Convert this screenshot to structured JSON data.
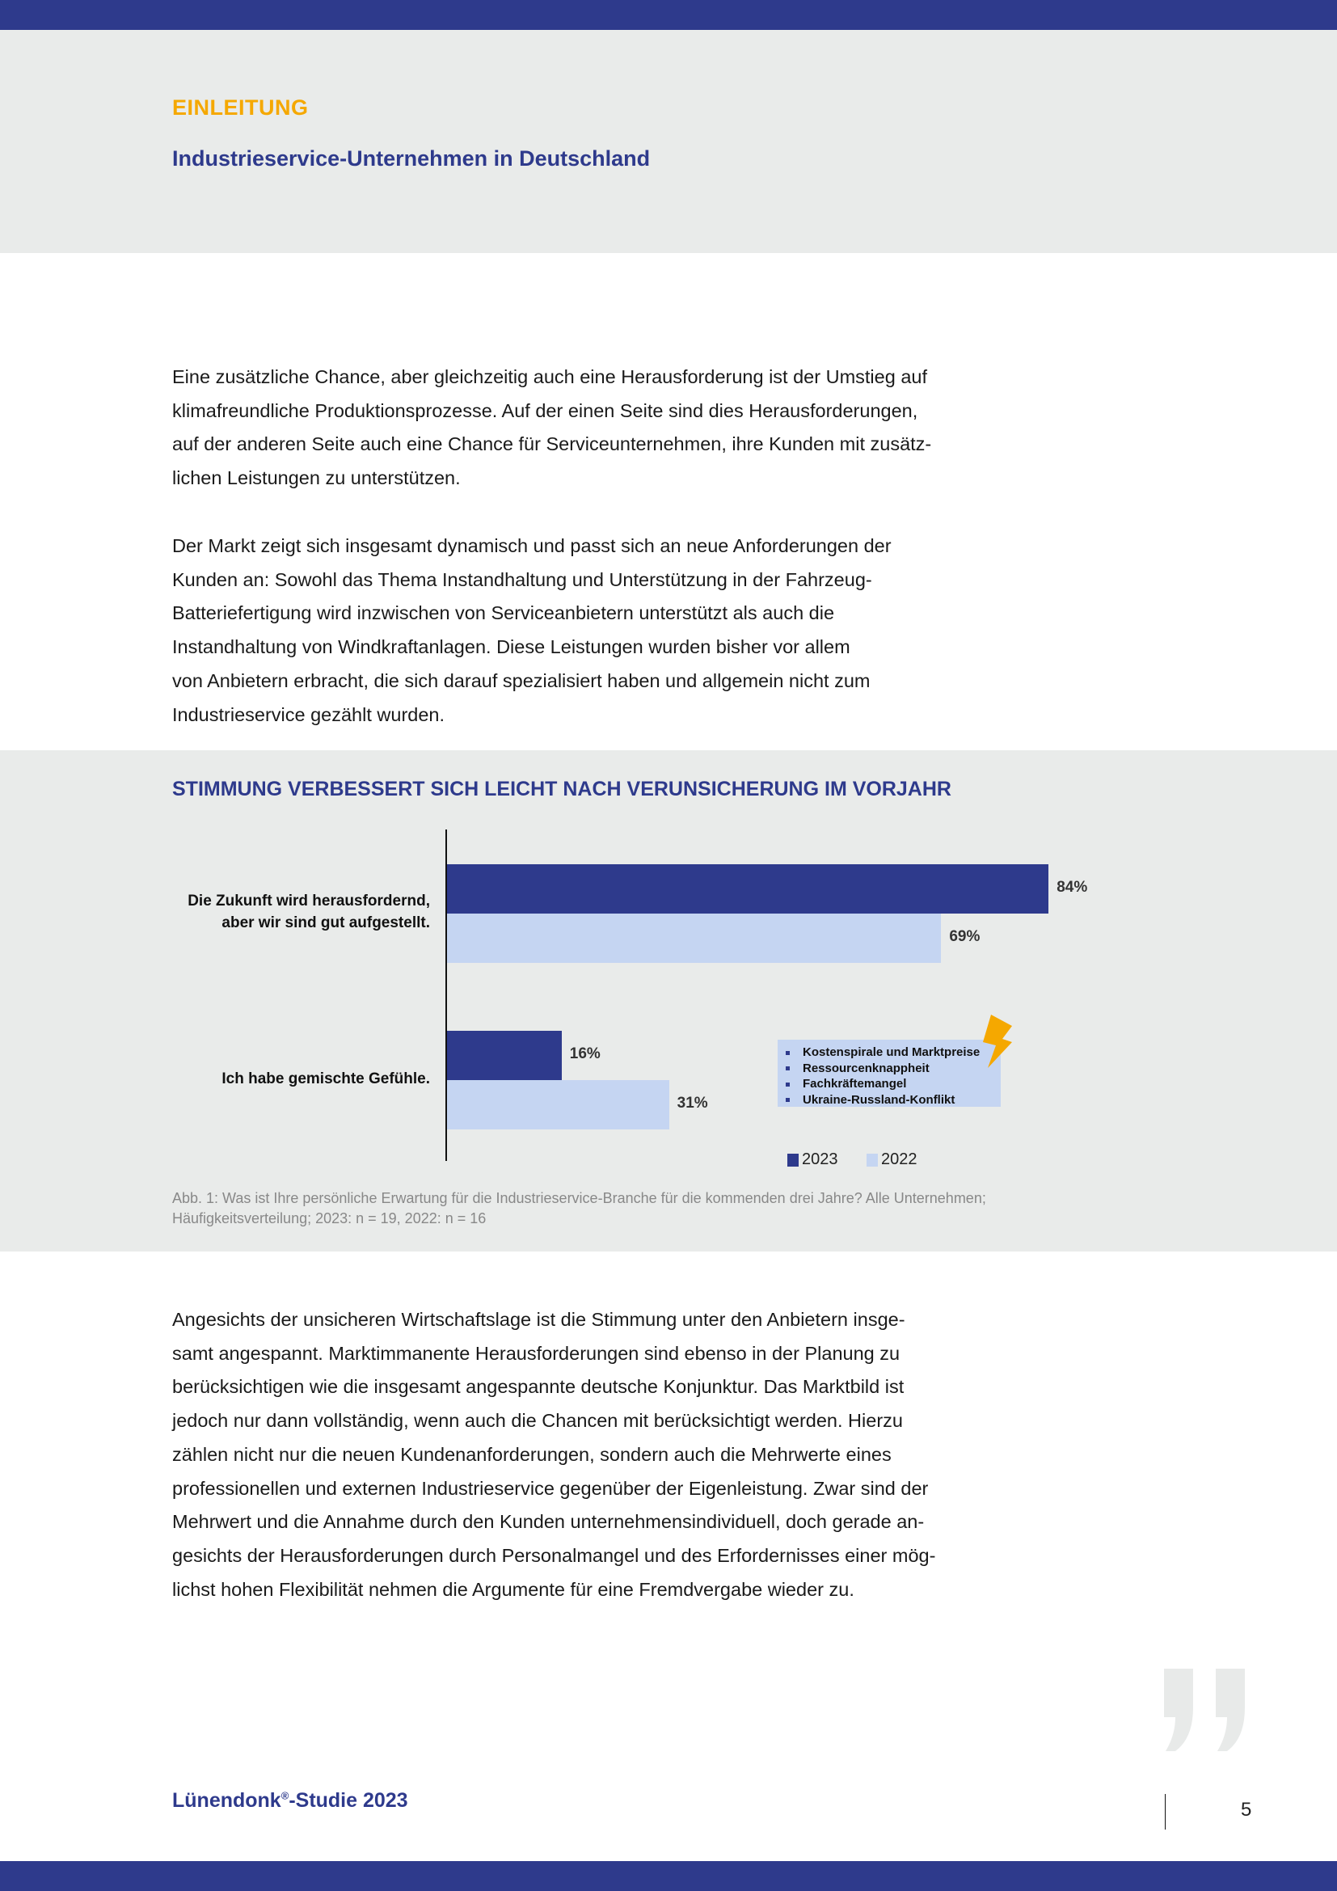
{
  "header": {
    "kicker": "EINLEITUNG",
    "subtitle": "Industrieservice-Unternehmen in Deutschland"
  },
  "paragraphs": [
    [
      "Eine zusätzliche Chance, aber gleichzeitig auch eine Herausforderung ist der Umstieg auf",
      "klimafreundliche Produktionsprozesse. Auf der einen Seite sind dies Herausforderungen,",
      "auf der anderen Seite auch eine Chance für Serviceunternehmen, ihre Kunden mit zusätz-",
      "lichen Leistungen zu unterstützen."
    ],
    [
      "Der Markt zeigt sich insgesamt dynamisch und passt sich an neue Anforderungen der",
      "Kunden an: Sowohl das Thema Instandhaltung und Unterstützung in der Fahrzeug-",
      "Batteriefertigung wird inzwischen von Serviceanbietern unterstützt als auch die",
      "Instandhaltung von Windkraftanlagen. Diese Leistungen wurden bisher vor allem",
      "von Anbietern erbracht, die sich darauf spezialisiert haben und allgemein nicht zum",
      "Industrieservice gezählt wurden."
    ],
    [
      "Angesichts der unsicheren Wirtschaftslage ist die Stimmung unter den Anbietern insge-",
      "samt angespannt. Marktimmanente Herausforderungen sind ebenso in der Planung zu",
      "berücksichtigen wie die insgesamt angespannte deutsche Konjunktur. Das Marktbild ist",
      "jedoch nur dann vollständig, wenn auch die Chancen mit berücksichtigt werden. Hierzu",
      "zählen nicht nur die neuen Kundenanforderungen, sondern auch die Mehrwerte eines",
      "professionellen und externen Industrieservice gegenüber der Eigenleistung. Zwar sind der",
      "Mehrwert und die Annahme durch den Kunden unternehmensindividuell, doch gerade an-",
      "gesichts der Herausforderungen durch Personalmangel und des Erfordernisses einer mög-",
      "lichst hohen Flexibilität nehmen die Argumente für eine Fremdvergabe wieder zu."
    ]
  ],
  "chart_data": {
    "type": "bar",
    "orientation": "horizontal",
    "title": "STIMMUNG VERBESSERT SICH LEICHT NACH VERUNSICHERUNG IM VORJAHR",
    "categories": [
      [
        "Die Zukunft wird herausfordernd,",
        "aber wir sind gut aufgestellt."
      ],
      [
        "Ich habe gemischte Gefühle."
      ]
    ],
    "series": [
      {
        "name": "2023",
        "values": [
          84,
          16
        ],
        "labels": [
          "84%",
          "16%"
        ],
        "color": "#2e3a8c"
      },
      {
        "name": "2022",
        "values": [
          69,
          31
        ],
        "labels": [
          "69%",
          "31%"
        ],
        "color": "#c5d5f2"
      }
    ],
    "xlim": [
      0,
      100
    ],
    "unit": "%",
    "grid": false,
    "legend": "bottom-right",
    "annotation": {
      "icon": "lightning-icon",
      "icon_color": "#f5a800",
      "items": [
        "Kostenspirale und Marktpreise",
        "Ressourcenknappheit",
        "Fachkräftemangel",
        "Ukraine-Russland-Konflikt"
      ]
    },
    "caption": [
      "Abb. 1: Was ist Ihre persönliche Erwartung für die Industrieservice-Branche für die kommenden drei Jahre? Alle Unternehmen;",
      "Häufigkeitsverteilung; 2023: n = 19, 2022: n = 16"
    ]
  },
  "footer": {
    "title": "Lünendonk",
    "reg": "®",
    "title_suffix": "-Studie 2023",
    "page": "5"
  },
  "colors": {
    "brand": "#2e3a8c",
    "accent": "#f5a800",
    "panel": "#e9ebea",
    "light_bar": "#c5d5f2"
  }
}
